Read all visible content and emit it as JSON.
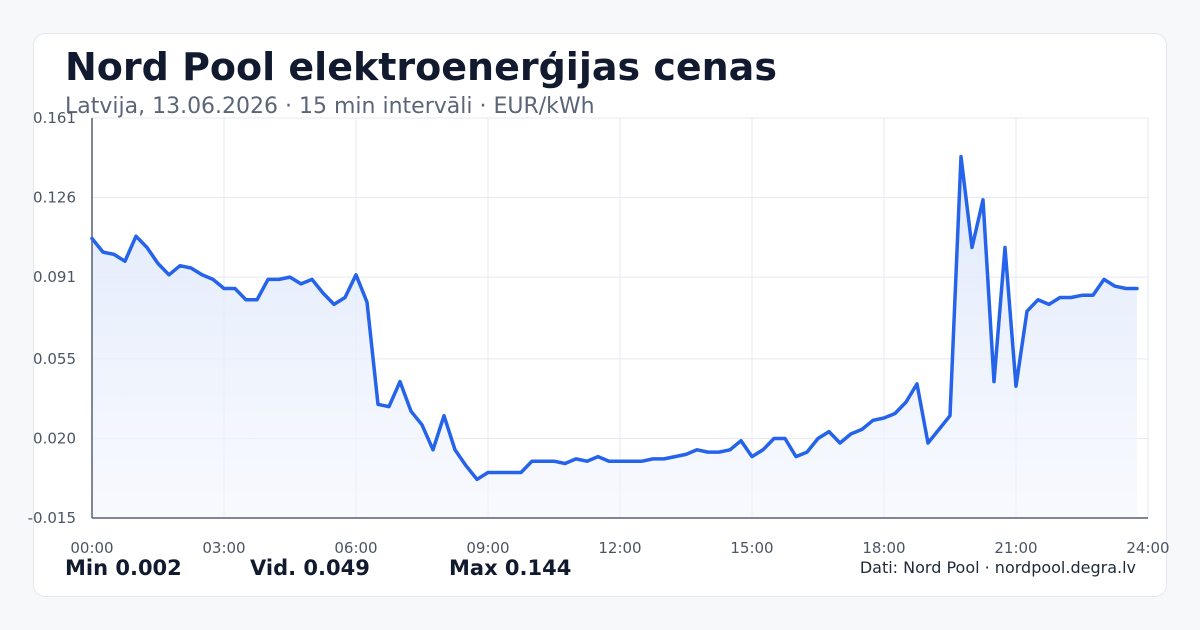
{
  "header": {
    "title": "Nord Pool elektroenerģijas cenas",
    "subtitle": "Latvija, 13.06.2026 · 15 min intervāli · EUR/kWh"
  },
  "chart_data": {
    "type": "area",
    "title": "Nord Pool elektroenerģijas cenas",
    "subtitle": "Latvija, 13.06.2026 · 15 min intervāli · EUR/kWh",
    "xlabel": "",
    "ylabel": "",
    "x_unit": "hours",
    "xlim": [
      0,
      24
    ],
    "ylim": [
      -0.015,
      0.161
    ],
    "grid": true,
    "x_ticks": [
      {
        "value": 0,
        "label": "00:00"
      },
      {
        "value": 3,
        "label": "03:00"
      },
      {
        "value": 6,
        "label": "06:00"
      },
      {
        "value": 9,
        "label": "09:00"
      },
      {
        "value": 12,
        "label": "12:00"
      },
      {
        "value": 15,
        "label": "15:00"
      },
      {
        "value": 18,
        "label": "18:00"
      },
      {
        "value": 21,
        "label": "21:00"
      },
      {
        "value": 24,
        "label": "24:00"
      }
    ],
    "y_ticks": [
      {
        "value": 0.161,
        "label": "0.161"
      },
      {
        "value": 0.126,
        "label": "0.126"
      },
      {
        "value": 0.091,
        "label": "0.091"
      },
      {
        "value": 0.055,
        "label": "0.055"
      },
      {
        "value": 0.02,
        "label": "0.020"
      },
      {
        "value": -0.015,
        "label": "-0.015"
      }
    ],
    "colors": {
      "line": "#2563eb",
      "fill_top": "#dce6fb",
      "fill_bottom": "#f3f6fd",
      "grid": "#e6e9ef",
      "axis": "#556070"
    },
    "series": [
      {
        "values": [
          [
            0.0,
            0.108
          ],
          [
            0.25,
            0.102
          ],
          [
            0.5,
            0.101
          ],
          [
            0.75,
            0.098
          ],
          [
            1.0,
            0.109
          ],
          [
            1.25,
            0.104
          ],
          [
            1.5,
            0.097
          ],
          [
            1.75,
            0.092
          ],
          [
            2.0,
            0.096
          ],
          [
            2.25,
            0.095
          ],
          [
            2.5,
            0.092
          ],
          [
            2.75,
            0.09
          ],
          [
            3.0,
            0.086
          ],
          [
            3.25,
            0.086
          ],
          [
            3.5,
            0.081
          ],
          [
            3.75,
            0.081
          ],
          [
            4.0,
            0.09
          ],
          [
            4.25,
            0.09
          ],
          [
            4.5,
            0.091
          ],
          [
            4.75,
            0.088
          ],
          [
            5.0,
            0.09
          ],
          [
            5.25,
            0.084
          ],
          [
            5.5,
            0.079
          ],
          [
            5.75,
            0.082
          ],
          [
            6.0,
            0.092
          ],
          [
            6.25,
            0.08
          ],
          [
            6.5,
            0.035
          ],
          [
            6.75,
            0.034
          ],
          [
            7.0,
            0.045
          ],
          [
            7.25,
            0.032
          ],
          [
            7.5,
            0.026
          ],
          [
            7.75,
            0.015
          ],
          [
            8.0,
            0.03
          ],
          [
            8.25,
            0.015
          ],
          [
            8.5,
            0.008
          ],
          [
            8.75,
            0.002
          ],
          [
            9.0,
            0.005
          ],
          [
            9.25,
            0.005
          ],
          [
            9.5,
            0.005
          ],
          [
            9.75,
            0.005
          ],
          [
            10.0,
            0.01
          ],
          [
            10.25,
            0.01
          ],
          [
            10.5,
            0.01
          ],
          [
            10.75,
            0.009
          ],
          [
            11.0,
            0.011
          ],
          [
            11.25,
            0.01
          ],
          [
            11.5,
            0.012
          ],
          [
            11.75,
            0.01
          ],
          [
            12.0,
            0.01
          ],
          [
            12.25,
            0.01
          ],
          [
            12.5,
            0.01
          ],
          [
            12.75,
            0.011
          ],
          [
            13.0,
            0.011
          ],
          [
            13.25,
            0.012
          ],
          [
            13.5,
            0.013
          ],
          [
            13.75,
            0.015
          ],
          [
            14.0,
            0.014
          ],
          [
            14.25,
            0.014
          ],
          [
            14.5,
            0.015
          ],
          [
            14.75,
            0.019
          ],
          [
            15.0,
            0.012
          ],
          [
            15.25,
            0.015
          ],
          [
            15.5,
            0.02
          ],
          [
            15.75,
            0.02
          ],
          [
            16.0,
            0.012
          ],
          [
            16.25,
            0.014
          ],
          [
            16.5,
            0.02
          ],
          [
            16.75,
            0.023
          ],
          [
            17.0,
            0.018
          ],
          [
            17.25,
            0.022
          ],
          [
            17.5,
            0.024
          ],
          [
            17.75,
            0.028
          ],
          [
            18.0,
            0.029
          ],
          [
            18.25,
            0.031
          ],
          [
            18.5,
            0.036
          ],
          [
            18.75,
            0.044
          ],
          [
            19.0,
            0.018
          ],
          [
            19.25,
            0.024
          ],
          [
            19.5,
            0.03
          ],
          [
            19.75,
            0.144
          ],
          [
            20.0,
            0.104
          ],
          [
            20.25,
            0.125
          ],
          [
            20.5,
            0.045
          ],
          [
            20.75,
            0.104
          ],
          [
            21.0,
            0.043
          ],
          [
            21.25,
            0.076
          ],
          [
            21.5,
            0.081
          ],
          [
            21.75,
            0.079
          ],
          [
            22.0,
            0.082
          ],
          [
            22.25,
            0.082
          ],
          [
            22.5,
            0.083
          ],
          [
            22.75,
            0.083
          ],
          [
            23.0,
            0.09
          ],
          [
            23.25,
            0.087
          ],
          [
            23.5,
            0.086
          ],
          [
            23.75,
            0.086
          ]
        ]
      }
    ]
  },
  "stats": {
    "min": "Min 0.002",
    "avg": "Vid. 0.049",
    "max": "Max 0.144"
  },
  "footer": {
    "source": "Dati: Nord Pool · nordpool.degra.lv"
  }
}
